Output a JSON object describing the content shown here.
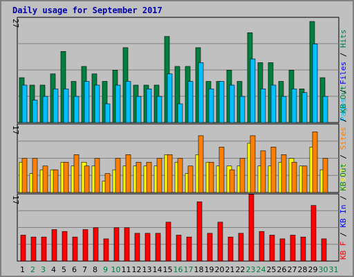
{
  "colors": {
    "background": "#c0c0c0",
    "plot_bg": "#c0c0c0",
    "hits": "#008040",
    "files": "#00c0ff",
    "pages": "#00c0ff",
    "visits": "#ffff00",
    "sites": "#ff8000",
    "kbytes": "#ff0000",
    "weekday": "#000000",
    "weekend": "#008040",
    "title": "#0000aa"
  },
  "chart_data": {
    "type": "bar",
    "title": "Daily usage for September 2017",
    "categories": [
      "1",
      "2",
      "3",
      "4",
      "5",
      "6",
      "7",
      "8",
      "9",
      "10",
      "11",
      "12",
      "13",
      "14",
      "15",
      "16",
      "17",
      "18",
      "19",
      "20",
      "21",
      "22",
      "23",
      "24",
      "25",
      "26",
      "27",
      "28",
      "29",
      "30",
      "31"
    ],
    "weekend_days": [
      2,
      3,
      9,
      10,
      16,
      17,
      23,
      24,
      30,
      31
    ],
    "panels": [
      {
        "name": "top",
        "ymax_label": "27",
        "ymax": 27,
        "labels": [
          {
            "text": "Pages",
            "color": "#00c0ff"
          },
          {
            "text": " / ",
            "color": "#000000"
          },
          {
            "text": "Files",
            "color": "#0000ff"
          },
          {
            "text": " / ",
            "color": "#000000"
          },
          {
            "text": "Hits",
            "color": "#008040"
          }
        ],
        "series": [
          {
            "name": "Hits",
            "color": "#008040",
            "values": [
              12,
              10,
              10,
              13,
              19,
              11,
              15,
              13,
              11,
              14,
              20,
              10,
              10,
              10,
              23,
              15,
              15,
              20,
              11,
              11,
              14,
              11,
              24,
              16,
              16,
              11,
              14,
              9,
              27,
              12,
              0
            ]
          },
          {
            "name": "Files",
            "color": "#00c0ff",
            "values": [
              10,
              6,
              7,
              9,
              9,
              7,
              11,
              10,
              5,
              10,
              11,
              7,
              9,
              7,
              13,
              5,
              11,
              16,
              9,
              11,
              10,
              7,
              17,
              9,
              10,
              7,
              9,
              8,
              21,
              7,
              0
            ]
          },
          {
            "name": "Pages",
            "color": "#0000ff",
            "values": [
              0,
              0,
              0,
              0,
              0,
              0,
              0,
              0,
              0,
              0,
              0,
              0,
              0,
              0,
              0,
              0,
              0,
              0,
              0,
              0,
              0,
              0,
              0,
              0,
              0,
              0,
              0,
              0,
              0,
              0,
              0
            ]
          }
        ]
      },
      {
        "name": "middle",
        "ymax_label": "17",
        "ymax": 17,
        "labels": [
          {
            "text": "Visits",
            "color": "#ffff00"
          },
          {
            "text": " / ",
            "color": "#000000"
          },
          {
            "text": "Sites",
            "color": "#ff8000"
          },
          {
            "text": " / ",
            "color": "#000000"
          },
          {
            "text": "KB Out",
            "color": "#008040"
          }
        ],
        "series": [
          {
            "name": "Visits",
            "color": "#ffff00",
            "values": [
              8,
              5,
              6,
              6,
              8,
              7,
              8,
              7,
              3,
              6,
              7,
              7,
              7,
              7,
              10,
              8,
              5,
              10,
              8,
              7,
              7,
              7,
              13,
              7,
              7,
              8,
              9,
              7,
              12,
              6,
              0
            ]
          },
          {
            "name": "Sites",
            "color": "#ff8000",
            "values": [
              9,
              9,
              7,
              6,
              8,
              10,
              7,
              9,
              5,
              9,
              10,
              8,
              8,
              9,
              10,
              9,
              7,
              15,
              8,
              12,
              6,
              9,
              15,
              11,
              12,
              10,
              8,
              7,
              16,
              9,
              0
            ]
          }
        ]
      },
      {
        "name": "bottom",
        "ymax_label": "17",
        "ymax": 17,
        "labels": [
          {
            "text": "KB F",
            "color": "#ff0000"
          },
          {
            "text": " / ",
            "color": "#000000"
          },
          {
            "text": "KB In",
            "color": "#0000ff"
          },
          {
            "text": " / ",
            "color": "#000000"
          },
          {
            "text": "KB Out",
            "color": "#008040"
          }
        ],
        "series": [
          {
            "name": "KB F",
            "color": "#ff0000",
            "values": [
              7,
              6.5,
              6.5,
              8.5,
              8,
              6.5,
              8.5,
              9,
              6,
              9,
              9,
              7.5,
              7.5,
              7.5,
              10.5,
              7,
              6.5,
              16,
              7.5,
              10.5,
              6.5,
              7.5,
              18,
              8,
              7,
              6,
              7,
              6.5,
              15,
              6,
              0
            ]
          }
        ]
      }
    ]
  }
}
